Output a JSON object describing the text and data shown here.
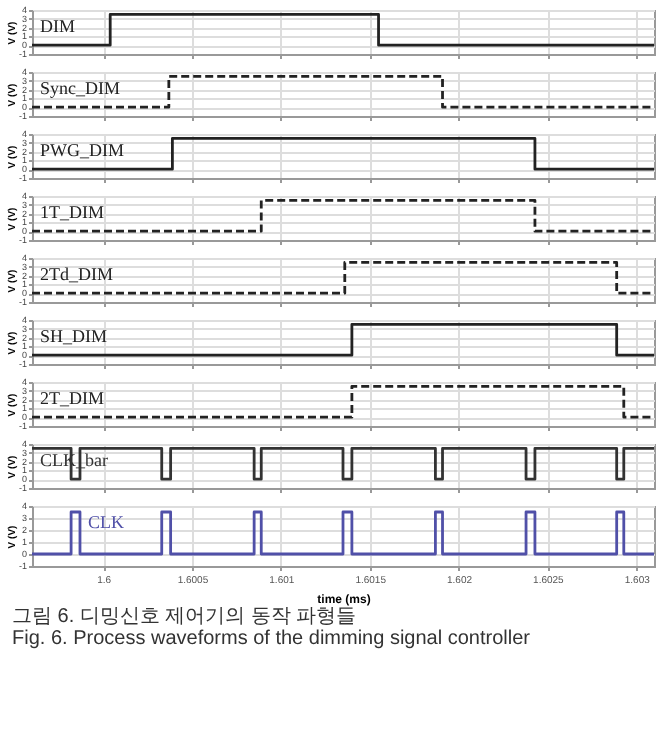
{
  "chart_data": [
    {
      "type": "step",
      "ylabel": "V (V)",
      "xlim": [
        1.5996,
        1.6031
      ],
      "xticks": [
        1.6,
        1.6005,
        1.601,
        1.6015,
        1.602,
        1.6025,
        1.603
      ],
      "ylim": [
        -1,
        4
      ],
      "yticks": [
        -1,
        0,
        1,
        2,
        3,
        4
      ],
      "grid": true,
      "tick_labels": "y",
      "series": [
        {
          "name": "DIM",
          "color": "#222222",
          "line_style": "solid",
          "x": [
            1.5996,
            1.60004,
            1.60155,
            1.6031
          ],
          "values": [
            0,
            3.5,
            0,
            0
          ]
        }
      ]
    },
    {
      "type": "step",
      "ylabel": "V (V)",
      "xlim": [
        1.5996,
        1.6031
      ],
      "xticks": [
        1.6,
        1.6005,
        1.601,
        1.6015,
        1.602,
        1.6025,
        1.603
      ],
      "ylim": [
        -1,
        4
      ],
      "yticks": [
        -1,
        0,
        1,
        2,
        3,
        4
      ],
      "grid": true,
      "tick_labels": "y",
      "series": [
        {
          "name": "Sync_DIM",
          "color": "#222222",
          "line_style": "dashed",
          "x": [
            1.5996,
            1.60037,
            1.60191,
            1.6031
          ],
          "values": [
            0,
            3.5,
            0,
            0
          ]
        }
      ]
    },
    {
      "type": "step",
      "ylabel": "V (V)",
      "xlim": [
        1.5996,
        1.6031
      ],
      "xticks": [
        1.6,
        1.6005,
        1.601,
        1.6015,
        1.602,
        1.6025,
        1.603
      ],
      "ylim": [
        -1,
        4
      ],
      "yticks": [
        -1,
        0,
        1,
        2,
        3,
        4
      ],
      "grid": true,
      "tick_labels": "y",
      "series": [
        {
          "name": "PWG_DIM",
          "color": "#222222",
          "line_style": "solid",
          "x": [
            1.5996,
            1.60039,
            1.60243,
            1.6031
          ],
          "values": [
            0,
            3.5,
            0,
            0
          ]
        }
      ]
    },
    {
      "type": "step",
      "ylabel": "V (V)",
      "xlim": [
        1.5996,
        1.6031
      ],
      "xticks": [
        1.6,
        1.6005,
        1.601,
        1.6015,
        1.602,
        1.6025,
        1.603
      ],
      "ylim": [
        -1,
        4
      ],
      "yticks": [
        -1,
        0,
        1,
        2,
        3,
        4
      ],
      "grid": true,
      "tick_labels": "y",
      "series": [
        {
          "name": "1T_DIM",
          "color": "#222222",
          "line_style": "dashed",
          "x": [
            1.5996,
            1.60089,
            1.60243,
            1.6031
          ],
          "values": [
            0,
            3.5,
            0,
            0
          ]
        }
      ]
    },
    {
      "type": "step",
      "ylabel": "V (V)",
      "xlim": [
        1.5996,
        1.6031
      ],
      "xticks": [
        1.6,
        1.6005,
        1.601,
        1.6015,
        1.602,
        1.6025,
        1.603
      ],
      "ylim": [
        -1,
        4
      ],
      "yticks": [
        -1,
        0,
        1,
        2,
        3,
        4
      ],
      "grid": true,
      "tick_labels": "y",
      "series": [
        {
          "name": "2Td_DIM",
          "color": "#222222",
          "line_style": "dashed",
          "x": [
            1.5996,
            1.60136,
            1.60289,
            1.6031
          ],
          "values": [
            0,
            3.5,
            0,
            0
          ]
        }
      ]
    },
    {
      "type": "step",
      "ylabel": "V (V)",
      "xlim": [
        1.5996,
        1.6031
      ],
      "xticks": [
        1.6,
        1.6005,
        1.601,
        1.6015,
        1.602,
        1.6025,
        1.603
      ],
      "ylim": [
        -1,
        4
      ],
      "yticks": [
        -1,
        0,
        1,
        2,
        3,
        4
      ],
      "grid": true,
      "tick_labels": "y",
      "series": [
        {
          "name": "SH_DIM",
          "color": "#222222",
          "line_style": "solid",
          "x": [
            1.5996,
            1.6014,
            1.60289,
            1.6031
          ],
          "values": [
            0,
            3.5,
            0,
            0
          ]
        }
      ]
    },
    {
      "type": "step",
      "ylabel": "V (V)",
      "xlim": [
        1.5996,
        1.6031
      ],
      "xticks": [
        1.6,
        1.6005,
        1.601,
        1.6015,
        1.602,
        1.6025,
        1.603
      ],
      "ylim": [
        -1,
        4
      ],
      "yticks": [
        -1,
        0,
        1,
        2,
        3,
        4
      ],
      "grid": true,
      "tick_labels": "y",
      "series": [
        {
          "name": "2T_DIM",
          "color": "#222222",
          "line_style": "dashed",
          "x": [
            1.5996,
            1.6014,
            1.60293,
            1.6031
          ],
          "values": [
            0,
            3.5,
            0,
            0
          ]
        }
      ]
    },
    {
      "type": "step",
      "ylabel": "V (V)",
      "xlim": [
        1.5996,
        1.6031
      ],
      "xticks": [
        1.6,
        1.6005,
        1.601,
        1.6015,
        1.602,
        1.6025,
        1.603
      ],
      "ylim": [
        -1,
        4
      ],
      "yticks": [
        -1,
        0,
        1,
        2,
        3,
        4
      ],
      "grid": true,
      "tick_labels": "y",
      "series": [
        {
          "name": "CLK_bar",
          "color": "#333333",
          "line_style": "solid",
          "x": [
            1.5996,
            1.59982,
            1.59987,
            1.60033,
            1.60038,
            1.60085,
            1.60089,
            1.60135,
            1.6014,
            1.60187,
            1.60191,
            1.60238,
            1.60243,
            1.60289,
            1.60293,
            1.6031
          ],
          "values": [
            3.5,
            0,
            3.5,
            0,
            3.5,
            0,
            3.5,
            0,
            3.5,
            0,
            3.5,
            0,
            3.5,
            0,
            3.5,
            3.5
          ]
        }
      ]
    },
    {
      "type": "step",
      "ylabel": "V (V)",
      "xlabel": "time (ms)",
      "xlim": [
        1.5996,
        1.6031
      ],
      "xticks": [
        1.6,
        1.6005,
        1.601,
        1.6015,
        1.602,
        1.6025,
        1.603
      ],
      "ylim": [
        -1,
        4
      ],
      "yticks": [
        -1,
        0,
        1,
        2,
        3,
        4
      ],
      "grid": true,
      "annotations": [
        "그림 6.  디밍신호 제어기의 동작 파형들",
        "Fig. 6.  Process waveforms of the dimming signal controller"
      ],
      "series": [
        {
          "name": "CLK",
          "color": "#5050a8",
          "line_style": "solid",
          "x": [
            1.5996,
            1.59982,
            1.59987,
            1.60033,
            1.60038,
            1.60085,
            1.60089,
            1.60135,
            1.6014,
            1.60187,
            1.60191,
            1.60238,
            1.60243,
            1.60289,
            1.60293,
            1.6031
          ],
          "values": [
            0,
            3.5,
            0,
            3.5,
            0,
            3.5,
            0,
            3.5,
            0,
            3.5,
            0,
            3.5,
            0,
            3.5,
            0,
            0
          ]
        }
      ]
    }
  ]
}
